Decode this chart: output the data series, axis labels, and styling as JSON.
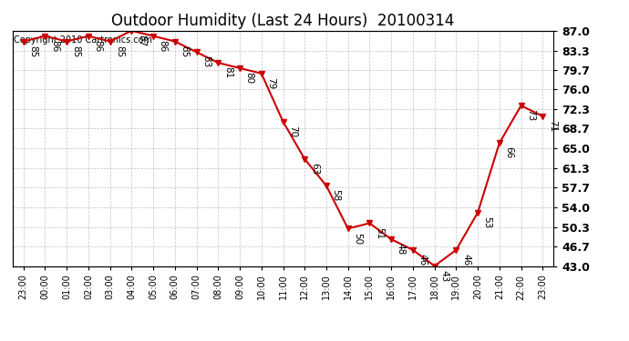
{
  "title": "Outdoor Humidity (Last 24 Hours)  20100314",
  "copyright": "Copyright 2010 Cartronics.com",
  "x_labels": [
    "23:00",
    "00:00",
    "01:00",
    "02:00",
    "03:00",
    "04:00",
    "05:00",
    "06:00",
    "07:00",
    "08:00",
    "09:00",
    "10:00",
    "11:00",
    "12:00",
    "13:00",
    "14:00",
    "15:00",
    "16:00",
    "17:00",
    "18:00",
    "19:00",
    "20:00",
    "21:00",
    "22:00",
    "23:00"
  ],
  "y_values": [
    85,
    86,
    85,
    86,
    85,
    87,
    86,
    85,
    83,
    81,
    80,
    79,
    70,
    63,
    58,
    50,
    51,
    48,
    46,
    43,
    46,
    53,
    66,
    73,
    71
  ],
  "y_min": 43.0,
  "y_max": 87.0,
  "y_ticks": [
    43.0,
    46.7,
    50.3,
    54.0,
    57.7,
    61.3,
    65.0,
    68.7,
    72.3,
    76.0,
    79.7,
    83.3,
    87.0
  ],
  "line_color": "#cc0000",
  "marker_color": "#cc0000",
  "bg_color": "#ffffff",
  "grid_color": "#bbbbbb",
  "title_fontsize": 12,
  "copyright_fontsize": 7,
  "annotation_fontsize": 7.5,
  "ytick_fontsize": 9,
  "xtick_fontsize": 7
}
